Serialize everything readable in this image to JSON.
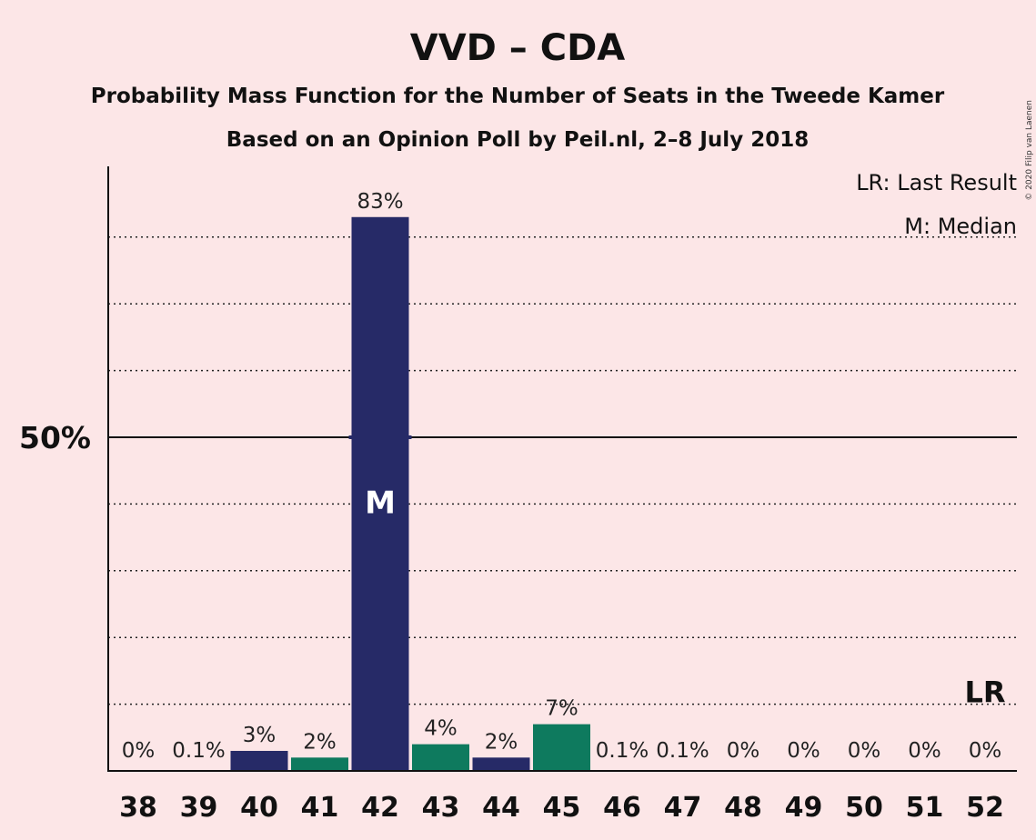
{
  "chart_data": {
    "type": "bar",
    "title": "VVD – CDA",
    "subtitle": "Probability Mass Function for the Number of Seats in the Tweede Kamer",
    "subtitle2": "Based on an Opinion Poll by Peil.nl, 2–8 July 2018",
    "categories": [
      "38",
      "39",
      "40",
      "41",
      "42",
      "43",
      "44",
      "45",
      "46",
      "47",
      "48",
      "49",
      "50",
      "51",
      "52"
    ],
    "values": [
      0,
      0.1,
      3,
      2,
      83,
      4,
      2,
      7,
      0.1,
      0.1,
      0,
      0,
      0,
      0,
      0
    ],
    "labels": [
      "0%",
      "0.1%",
      "3%",
      "2%",
      "83%",
      "4%",
      "2%",
      "7%",
      "0.1%",
      "0.1%",
      "0%",
      "0%",
      "0%",
      "0%",
      "0%"
    ],
    "bar_colors": [
      "#262a67",
      "#0e7a5e",
      "#262a67",
      "#0e7a5e",
      "#262a67",
      "#0e7a5e",
      "#262a67",
      "#0e7a5e",
      "#262a67",
      "#0e7a5e",
      "#262a67",
      "#0e7a5e",
      "#262a67",
      "#0e7a5e",
      "#262a67"
    ],
    "ylim": [
      0,
      90
    ],
    "ytick_label": "50%",
    "ytick_value": 50,
    "gridlines": [
      10,
      20,
      30,
      40,
      60,
      70,
      80
    ],
    "median_category": "42",
    "median_marker": "M",
    "last_result_category": "52",
    "last_result_marker": "LR",
    "legend": [
      "LR: Last Result",
      "M: Median"
    ],
    "copyright": "© 2020 Filip van Laenen",
    "colors": {
      "background": "#fce6e7",
      "vvd": "#262a67",
      "cda": "#0e7a5e"
    }
  }
}
